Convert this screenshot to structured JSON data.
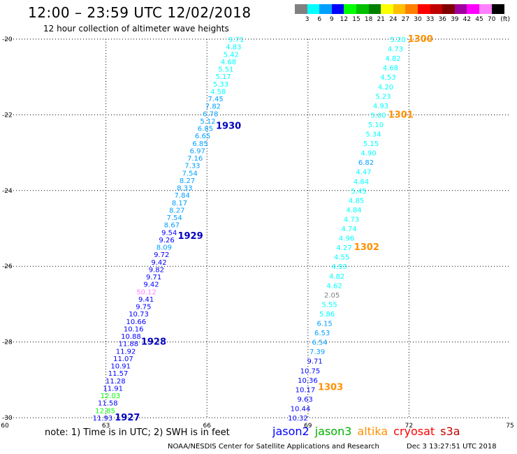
{
  "title": "12:00 – 23:59 UTC 12/02/2018",
  "subtitle": "12 hour collection of altimeter wave heights",
  "legend": {
    "unit": "(ft)",
    "bins": [
      {
        "label": "3",
        "color": "#808080"
      },
      {
        "label": "6",
        "color": "#00ffff"
      },
      {
        "label": "9",
        "color": "#00a0ff"
      },
      {
        "label": "12",
        "color": "#0000ff"
      },
      {
        "label": "15",
        "color": "#00ff00"
      },
      {
        "label": "18",
        "color": "#00c000"
      },
      {
        "label": "21",
        "color": "#008000"
      },
      {
        "label": "24",
        "color": "#ffff00"
      },
      {
        "label": "27",
        "color": "#ffc000"
      },
      {
        "label": "30",
        "color": "#ff8000"
      },
      {
        "label": "33",
        "color": "#ff0000"
      },
      {
        "label": "36",
        "color": "#c00000"
      },
      {
        "label": "39",
        "color": "#800000"
      },
      {
        "label": "42",
        "color": "#a000a0"
      },
      {
        "label": "45",
        "color": "#ff00ff"
      },
      {
        "label": "70",
        "color": "#ff80ff"
      },
      {
        "label": "",
        "color": "#000000"
      }
    ]
  },
  "chart_data": {
    "type": "scatter",
    "xlim": [
      60,
      75
    ],
    "ylim": [
      -30,
      -20
    ],
    "x_ticks": [
      "60",
      "63",
      "66",
      "69",
      "72",
      "75"
    ],
    "y_ticks": [
      "-20",
      "-22",
      "-24",
      "-26",
      "-28",
      "-30"
    ],
    "grid": true,
    "tracks": [
      {
        "satellite": "jason2",
        "points": [
          {
            "v": "9.71",
            "c": "#00ffff"
          },
          {
            "v": "4.83",
            "c": "#00ffff"
          },
          {
            "v": "5.42",
            "c": "#00ffff"
          },
          {
            "v": "4.68",
            "c": "#00ffff"
          },
          {
            "v": "5.51",
            "c": "#00ffff"
          },
          {
            "v": "5.17",
            "c": "#00ffff"
          },
          {
            "v": "5.33",
            "c": "#00ffff"
          },
          {
            "v": "4.58",
            "c": "#00ffff"
          },
          {
            "v": "7.45",
            "c": "#00a0ff"
          },
          {
            "v": "7.82",
            "c": "#00a0ff"
          },
          {
            "v": "6.78",
            "c": "#00a0ff"
          },
          {
            "v": "5.12",
            "c": "#00a0ff"
          },
          {
            "v": "6.85",
            "c": "#00a0ff"
          },
          {
            "v": "6.65",
            "c": "#00a0ff"
          },
          {
            "v": "6.85",
            "c": "#00a0ff"
          },
          {
            "v": "6.97",
            "c": "#00a0ff"
          },
          {
            "v": "7.16",
            "c": "#00a0ff"
          },
          {
            "v": "7.33",
            "c": "#00a0ff"
          },
          {
            "v": "7.54",
            "c": "#00a0ff"
          },
          {
            "v": "8.27",
            "c": "#00a0ff"
          },
          {
            "v": "8.33",
            "c": "#00a0ff"
          },
          {
            "v": "7.84",
            "c": "#00a0ff"
          },
          {
            "v": "8.17",
            "c": "#00a0ff"
          },
          {
            "v": "8.27",
            "c": "#00a0ff"
          },
          {
            "v": "7.54",
            "c": "#00a0ff"
          },
          {
            "v": "8.67",
            "c": "#00a0ff"
          },
          {
            "v": "9.54",
            "c": "#0000ff"
          },
          {
            "v": "9.26",
            "c": "#0000ff"
          },
          {
            "v": "8.09",
            "c": "#00a0ff"
          },
          {
            "v": "9.72",
            "c": "#0000ff"
          },
          {
            "v": "9.42",
            "c": "#0000ff"
          },
          {
            "v": "9.82",
            "c": "#0000ff"
          },
          {
            "v": "9.71",
            "c": "#0000ff"
          },
          {
            "v": "9.42",
            "c": "#0000ff"
          },
          {
            "v": "50.12",
            "c": "#ff80ff"
          },
          {
            "v": "9.41",
            "c": "#0000ff"
          },
          {
            "v": "9.75",
            "c": "#0000ff"
          },
          {
            "v": "10.73",
            "c": "#0000ff"
          },
          {
            "v": "10.66",
            "c": "#0000ff"
          },
          {
            "v": "10.16",
            "c": "#0000ff"
          },
          {
            "v": "10.88",
            "c": "#0000ff"
          },
          {
            "v": "11.88",
            "c": "#0000ff"
          },
          {
            "v": "11.92",
            "c": "#0000ff"
          },
          {
            "v": "11.07",
            "c": "#0000ff"
          },
          {
            "v": "10.91",
            "c": "#0000ff"
          },
          {
            "v": "11.57",
            "c": "#0000ff"
          },
          {
            "v": "11.28",
            "c": "#0000ff"
          },
          {
            "v": "11.91",
            "c": "#0000ff"
          },
          {
            "v": "12.03",
            "c": "#00ff00"
          },
          {
            "v": "11.58",
            "c": "#0000ff"
          },
          {
            "v": "12.85",
            "c": "#00ff00"
          },
          {
            "v": "11.93",
            "c": "#0000ff"
          }
        ],
        "passes": [
          {
            "label": "1930",
            "lat": -22.3
          },
          {
            "label": "1929",
            "lat": -25.2
          },
          {
            "label": "1928",
            "lat": -28.0
          },
          {
            "label": "1927",
            "lat": -30.0
          }
        ]
      },
      {
        "satellite": "altika",
        "points": [
          {
            "v": "5.20",
            "c": "#00ffff"
          },
          {
            "v": "4.73",
            "c": "#00ffff"
          },
          {
            "v": "4.82",
            "c": "#00ffff"
          },
          {
            "v": "4.68",
            "c": "#00ffff"
          },
          {
            "v": "4.53",
            "c": "#00ffff"
          },
          {
            "v": "4.20",
            "c": "#00ffff"
          },
          {
            "v": "5.23",
            "c": "#00ffff"
          },
          {
            "v": "4.93",
            "c": "#00ffff"
          },
          {
            "v": "5.00",
            "c": "#00ffff"
          },
          {
            "v": "5.10",
            "c": "#00ffff"
          },
          {
            "v": "5.34",
            "c": "#00ffff"
          },
          {
            "v": "5.15",
            "c": "#00ffff"
          },
          {
            "v": "4.90",
            "c": "#00ffff"
          },
          {
            "v": "6.82",
            "c": "#00a0ff"
          },
          {
            "v": "4.47",
            "c": "#00ffff"
          },
          {
            "v": "4.84",
            "c": "#00ffff"
          },
          {
            "v": "5.45",
            "c": "#00ffff"
          },
          {
            "v": "4.85",
            "c": "#00ffff"
          },
          {
            "v": "4.84",
            "c": "#00ffff"
          },
          {
            "v": "4.73",
            "c": "#00ffff"
          },
          {
            "v": "4.74",
            "c": "#00ffff"
          },
          {
            "v": "4.96",
            "c": "#00ffff"
          },
          {
            "v": "4.27",
            "c": "#00ffff"
          },
          {
            "v": "4.55",
            "c": "#00ffff"
          },
          {
            "v": "4.93",
            "c": "#00ffff"
          },
          {
            "v": "4.82",
            "c": "#00ffff"
          },
          {
            "v": "4.62",
            "c": "#00ffff"
          },
          {
            "v": "2.05",
            "c": "#808080"
          },
          {
            "v": "5.55",
            "c": "#00ffff"
          },
          {
            "v": "5.86",
            "c": "#00ffff"
          },
          {
            "v": "6.15",
            "c": "#00a0ff"
          },
          {
            "v": "6.53",
            "c": "#00a0ff"
          },
          {
            "v": "6.54",
            "c": "#00a0ff"
          },
          {
            "v": "7.39",
            "c": "#00a0ff"
          },
          {
            "v": "9.71",
            "c": "#0000ff"
          },
          {
            "v": "10.75",
            "c": "#0000ff"
          },
          {
            "v": "10.36",
            "c": "#0000ff"
          },
          {
            "v": "10.17",
            "c": "#0000ff"
          },
          {
            "v": "9.63",
            "c": "#0000ff"
          },
          {
            "v": "10.44",
            "c": "#0000ff"
          },
          {
            "v": "10.32",
            "c": "#0000ff"
          }
        ],
        "passes": [
          {
            "label": "1300",
            "lat": -20.0
          },
          {
            "label": "1301",
            "lat": -22.0
          },
          {
            "label": "1302",
            "lat": -25.5
          },
          {
            "label": "1303",
            "lat": -29.2
          }
        ]
      }
    ]
  },
  "note": "note: 1) Time is in UTC; 2) SWH is in feet",
  "satellites": [
    {
      "name": "jason2",
      "color": "#0000ff"
    },
    {
      "name": "jason3",
      "color": "#00b000"
    },
    {
      "name": "altika",
      "color": "#ff9000"
    },
    {
      "name": "cryosat",
      "color": "#ff0000"
    },
    {
      "name": "s3a",
      "color": "#c00000"
    }
  ],
  "credit": "NOAA/NESDIS Center for Satellite Applications and Research",
  "timestamp": "Dec  3 13:27:51 UTC 2018"
}
